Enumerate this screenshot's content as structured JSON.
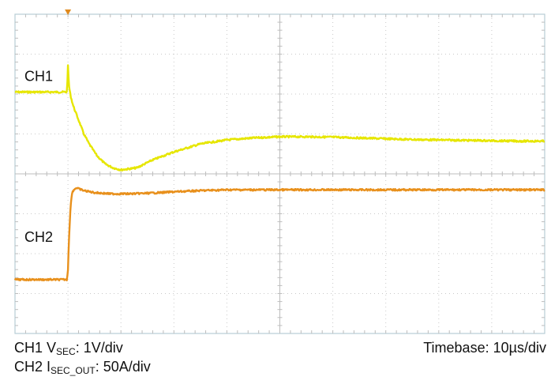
{
  "chart_data": {
    "type": "line",
    "title": "",
    "xlabel": "",
    "ylabel": "",
    "x_units": "divisions",
    "xlim": [
      0,
      10
    ],
    "ylim": [
      -4,
      4
    ],
    "grid": true,
    "grid_divisions": {
      "x": 10,
      "y": 8
    },
    "trigger_marker_x": 1,
    "colors": {
      "plot_border": "#b8cdd6",
      "grid": "#c9c9c9",
      "ch1": "#e6e600",
      "ch2": "#e8901c",
      "trigger": "#e08a1e"
    },
    "series": [
      {
        "name": "CH1",
        "color": "#e6e600",
        "x": [
          0,
          0.98,
          1.0,
          1.02,
          1.05,
          1.1,
          1.2,
          1.3,
          1.4,
          1.55,
          1.7,
          1.85,
          2.0,
          2.3,
          2.6,
          3.0,
          3.5,
          4.0,
          4.5,
          5.0,
          5.5,
          6.0,
          6.5,
          7.0,
          7.5,
          8.0,
          8.5,
          9.0,
          9.5,
          10.0
        ],
        "y": [
          2.05,
          2.05,
          2.7,
          2.2,
          1.95,
          1.7,
          1.35,
          1.0,
          0.75,
          0.45,
          0.25,
          0.15,
          0.1,
          0.15,
          0.35,
          0.55,
          0.75,
          0.85,
          0.9,
          0.93,
          0.93,
          0.92,
          0.9,
          0.88,
          0.86,
          0.85,
          0.84,
          0.83,
          0.82,
          0.82
        ]
      },
      {
        "name": "CH2",
        "color": "#e8901c",
        "x": [
          0,
          0.98,
          1.0,
          1.02,
          1.05,
          1.08,
          1.15,
          1.3,
          1.5,
          1.8,
          2.2,
          2.6,
          3.0,
          3.5,
          4.0,
          5.0,
          6.0,
          7.0,
          8.0,
          9.0,
          10.0
        ],
        "y": [
          -2.65,
          -2.65,
          -2.4,
          -1.6,
          -0.8,
          -0.45,
          -0.35,
          -0.42,
          -0.47,
          -0.5,
          -0.5,
          -0.48,
          -0.45,
          -0.42,
          -0.4,
          -0.4,
          -0.4,
          -0.4,
          -0.4,
          -0.4,
          -0.4
        ]
      }
    ],
    "channel_labels": [
      "CH1",
      "CH2"
    ]
  },
  "captions": {
    "ch1_prefix": "CH1 V",
    "ch1_sub": "SEC",
    "ch1_suffix": ": 1V/div",
    "ch2_prefix": "CH2 I",
    "ch2_sub": "SEC_OUT",
    "ch2_suffix": ": 50A/div",
    "timebase": "Timebase: 10µs/div"
  }
}
